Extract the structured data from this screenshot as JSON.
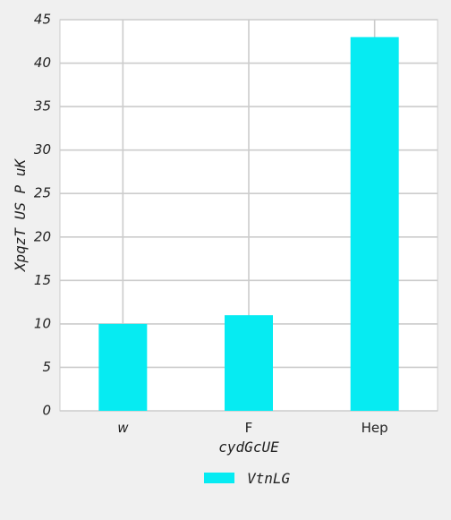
{
  "chart_data": {
    "type": "bar",
    "categories": [
      "w",
      "F",
      "Hep"
    ],
    "category_italic": [
      true,
      false,
      false
    ],
    "series": [
      {
        "name": "VtnLG",
        "values": [
          10,
          11,
          43
        ],
        "color": "#06ebf2"
      }
    ],
    "xlabel": "cydGcUE",
    "ylabel": "XpqzT US P uK",
    "ylim": [
      0,
      45
    ],
    "yticks": [
      0,
      5,
      10,
      15,
      20,
      25,
      30,
      35,
      40,
      45
    ],
    "ytick_labels": [
      "0",
      "5",
      "10",
      "15",
      "20",
      "25",
      "30",
      "35",
      "40",
      "45"
    ],
    "grid": true,
    "legend": {
      "placement": "bottom-center"
    },
    "colors": {
      "plot_background": "#ffffff",
      "page_background": "#f0f0f0",
      "grid": "#cccccc",
      "text": "#222222"
    }
  }
}
